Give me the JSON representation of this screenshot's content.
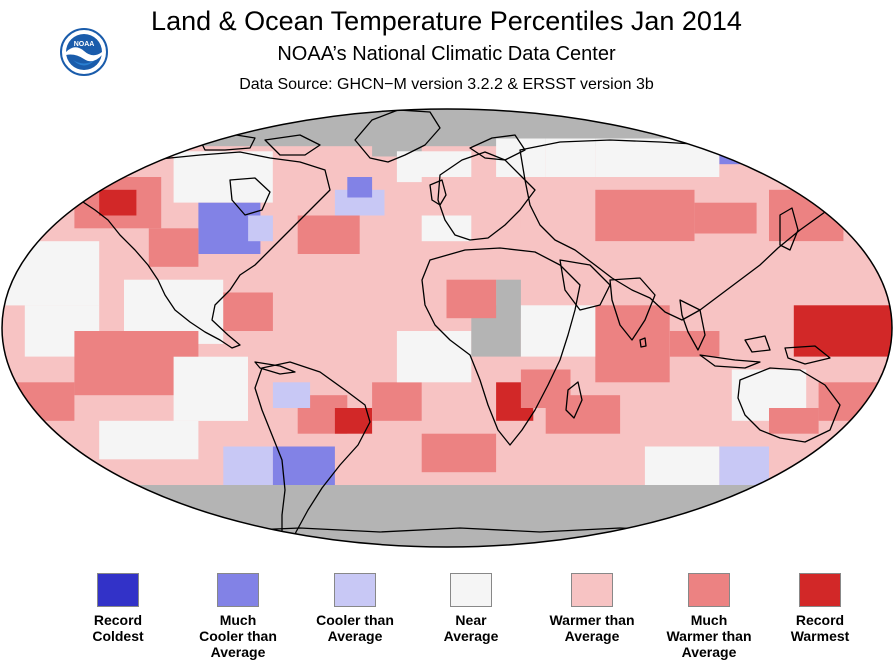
{
  "header": {
    "title": "Land & Ocean Temperature Percentiles Jan 2014",
    "subtitle": "NOAA’s National Climatic Data Center",
    "source": "Data Source: GHCN−M version 3.2.2 & ERSST version 3b",
    "logo_text": "NOAA"
  },
  "colors": {
    "record_coldest": "#3232c8",
    "much_cooler": "#8282e6",
    "cooler": "#c8c8f5",
    "near": "#f5f5f5",
    "warmer": "#f7c3c3",
    "much_warmer": "#ec8282",
    "record_warmest": "#d22828",
    "no_data": "#b4b4b4",
    "coastline": "#000000"
  },
  "legend": [
    {
      "label": "Record\nColdest",
      "color": "#3232c8"
    },
    {
      "label": "Much\nCooler than\nAverage",
      "color": "#8282e6"
    },
    {
      "label": "Cooler than\nAverage",
      "color": "#c8c8f5"
    },
    {
      "label": "Near\nAverage",
      "color": "#f5f5f5"
    },
    {
      "label": "Warmer than\nAverage",
      "color": "#f7c3c3"
    },
    {
      "label": "Much\nWarmer than\nAverage",
      "color": "#ec8282"
    },
    {
      "label": "Record\nWarmest",
      "color": "#d22828"
    }
  ]
}
